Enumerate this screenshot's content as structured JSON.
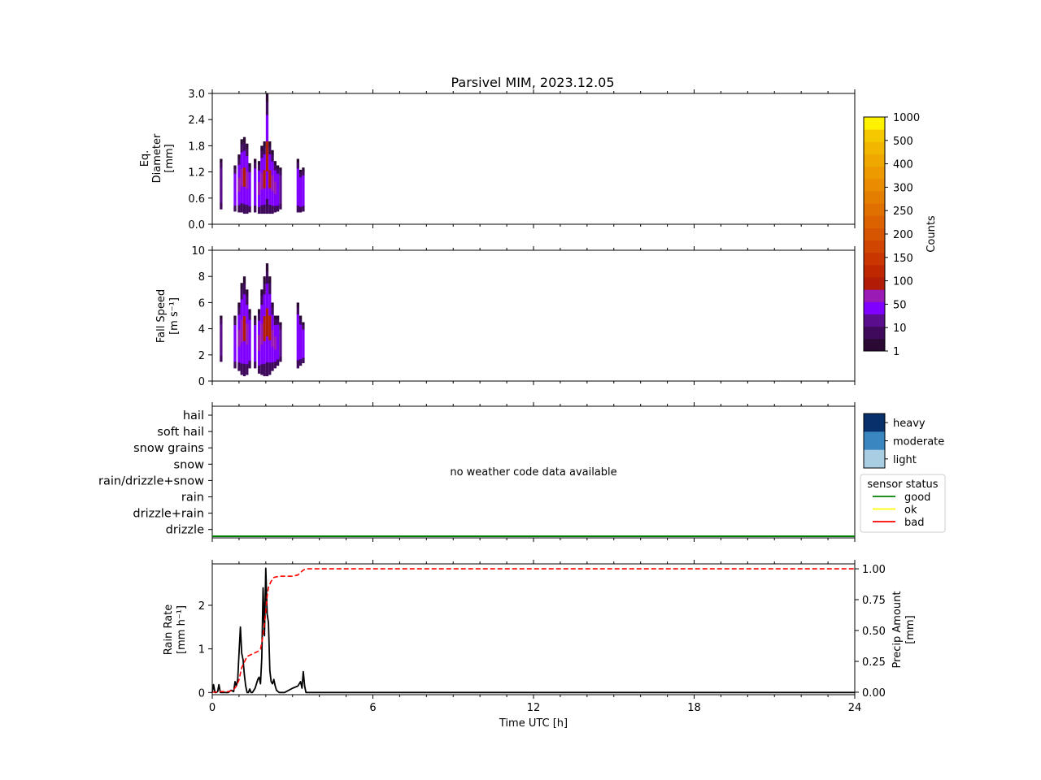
{
  "figure_title": "Parsivel MIM, 2023.12.05",
  "time_axis": {
    "label": "Time UTC [h]",
    "range": [
      0,
      24
    ],
    "major_ticks": [
      0,
      6,
      12,
      18,
      24
    ],
    "major_tick_labels": [
      "0",
      "6",
      "12",
      "18",
      "24"
    ],
    "minor_tick_step": 1
  },
  "colorbar_counts": {
    "label": "Counts",
    "levels": [
      "1",
      "10",
      "50",
      "100",
      "150",
      "200",
      "250",
      "300",
      "400",
      "500",
      "1000"
    ],
    "colors": [
      "#2a0a33",
      "#3f0a5c",
      "#5a0d8c",
      "#8000ff",
      "#9a1ab5",
      "#b01c05",
      "#bf2700",
      "#c93600",
      "#d04500",
      "#d65500",
      "#dc6200",
      "#e07000",
      "#e47e00",
      "#e98c00",
      "#ec9a00",
      "#efa800",
      "#f2b600",
      "#f6c800",
      "#fff200"
    ]
  },
  "weather_code_panel": {
    "categories": [
      "hail",
      "soft hail",
      "snow grains",
      "snow",
      "rain/drizzle+snow",
      "rain",
      "drizzle+rain",
      "drizzle"
    ],
    "message": "no weather code data available",
    "intensity_legend": [
      {
        "label": "heavy",
        "color": "#08306b"
      },
      {
        "label": "moderate",
        "color": "#3a86c0"
      },
      {
        "label": "light",
        "color": "#a9cde3"
      }
    ],
    "sensor_status_legend": {
      "title": "sensor status",
      "items": [
        {
          "label": "good",
          "color": "#008000"
        },
        {
          "label": "ok",
          "color": "#ffff00"
        },
        {
          "label": "bad",
          "color": "#ff0000"
        }
      ]
    },
    "status_line_color": "#008000"
  },
  "chart_data": [
    {
      "type": "heatmap",
      "title": "Parsivel MIM, 2023.12.05",
      "xlabel": "Time UTC [h]",
      "ylabel": "Eq. Diameter [mm]",
      "xlim": [
        0,
        24
      ],
      "ylim": [
        0,
        3.0
      ],
      "yticks": [
        "0.0",
        "0.6",
        "1.2",
        "1.8",
        "2.4",
        "3.0"
      ],
      "columns": [
        {
          "t": 0.33,
          "ymin": 0.35,
          "ymax": 1.5,
          "level": 2
        },
        {
          "t": 0.85,
          "ymin": 0.3,
          "ymax": 1.35,
          "level": 3
        },
        {
          "t": 1.0,
          "ymin": 0.28,
          "ymax": 1.6,
          "level": 4
        },
        {
          "t": 1.1,
          "ymin": 0.28,
          "ymax": 1.95,
          "level": 4
        },
        {
          "t": 1.2,
          "ymin": 0.25,
          "ymax": 2.0,
          "level": 5
        },
        {
          "t": 1.3,
          "ymin": 0.25,
          "ymax": 1.85,
          "level": 4
        },
        {
          "t": 1.4,
          "ymin": 0.28,
          "ymax": 1.4,
          "level": 3
        },
        {
          "t": 1.6,
          "ymin": 0.28,
          "ymax": 1.5,
          "level": 3
        },
        {
          "t": 1.75,
          "ymin": 0.25,
          "ymax": 1.45,
          "level": 4
        },
        {
          "t": 1.85,
          "ymin": 0.25,
          "ymax": 1.8,
          "level": 4
        },
        {
          "t": 1.95,
          "ymin": 0.25,
          "ymax": 1.9,
          "level": 5
        },
        {
          "t": 2.05,
          "ymin": 0.25,
          "ymax": 3.0,
          "level": 5
        },
        {
          "t": 2.15,
          "ymin": 0.25,
          "ymax": 1.9,
          "level": 5
        },
        {
          "t": 2.25,
          "ymin": 0.25,
          "ymax": 1.7,
          "level": 4
        },
        {
          "t": 2.35,
          "ymin": 0.28,
          "ymax": 1.45,
          "level": 4
        },
        {
          "t": 2.45,
          "ymin": 0.3,
          "ymax": 1.35,
          "level": 3
        },
        {
          "t": 2.55,
          "ymin": 0.35,
          "ymax": 1.3,
          "level": 2
        },
        {
          "t": 3.2,
          "ymin": 0.28,
          "ymax": 1.5,
          "level": 3
        },
        {
          "t": 3.3,
          "ymin": 0.28,
          "ymax": 1.25,
          "level": 3
        },
        {
          "t": 3.4,
          "ymin": 0.3,
          "ymax": 1.3,
          "level": 3
        }
      ]
    },
    {
      "type": "heatmap",
      "xlabel": "Time UTC [h]",
      "ylabel": "Fall Speed [m s⁻¹]",
      "xlim": [
        0,
        24
      ],
      "ylim": [
        0,
        10
      ],
      "yticks": [
        "0",
        "2",
        "4",
        "6",
        "8",
        "10"
      ],
      "columns": [
        {
          "t": 0.33,
          "ymin": 1.5,
          "ymax": 5.0,
          "level": 2
        },
        {
          "t": 0.85,
          "ymin": 1.0,
          "ymax": 5.0,
          "level": 3
        },
        {
          "t": 1.0,
          "ymin": 0.8,
          "ymax": 6.0,
          "level": 4
        },
        {
          "t": 1.1,
          "ymin": 0.5,
          "ymax": 7.5,
          "level": 4
        },
        {
          "t": 1.2,
          "ymin": 0.4,
          "ymax": 8.0,
          "level": 5
        },
        {
          "t": 1.3,
          "ymin": 0.5,
          "ymax": 7.0,
          "level": 4
        },
        {
          "t": 1.4,
          "ymin": 1.0,
          "ymax": 5.5,
          "level": 3
        },
        {
          "t": 1.6,
          "ymin": 1.0,
          "ymax": 5.0,
          "level": 3
        },
        {
          "t": 1.75,
          "ymin": 0.6,
          "ymax": 5.5,
          "level": 4
        },
        {
          "t": 1.85,
          "ymin": 0.5,
          "ymax": 7.0,
          "level": 4
        },
        {
          "t": 1.95,
          "ymin": 0.4,
          "ymax": 8.0,
          "level": 5
        },
        {
          "t": 2.05,
          "ymin": 0.4,
          "ymax": 9.0,
          "level": 5
        },
        {
          "t": 2.15,
          "ymin": 0.5,
          "ymax": 8.0,
          "level": 5
        },
        {
          "t": 2.25,
          "ymin": 0.8,
          "ymax": 6.0,
          "level": 4
        },
        {
          "t": 2.35,
          "ymin": 1.0,
          "ymax": 5.0,
          "level": 4
        },
        {
          "t": 2.45,
          "ymin": 1.2,
          "ymax": 5.0,
          "level": 3
        },
        {
          "t": 2.55,
          "ymin": 1.5,
          "ymax": 4.5,
          "level": 2
        },
        {
          "t": 3.2,
          "ymin": 1.0,
          "ymax": 6.0,
          "level": 3
        },
        {
          "t": 3.3,
          "ymin": 1.2,
          "ymax": 5.0,
          "level": 3
        },
        {
          "t": 3.4,
          "ymin": 1.4,
          "ymax": 4.5,
          "level": 3
        }
      ]
    },
    {
      "type": "line",
      "xlabel": "Time UTC [h]",
      "ylabel": "Rain Rate [mm h⁻¹]",
      "y2label": "Precip Amount [mm]",
      "xlim": [
        0,
        24
      ],
      "ylim": [
        -0.05,
        2.95
      ],
      "y2lim": [
        -0.02,
        1.04
      ],
      "yticks": [
        "0",
        "1",
        "2"
      ],
      "y2ticks": [
        "0.00",
        "0.25",
        "0.50",
        "0.75",
        "1.00"
      ],
      "series": [
        {
          "color": "#000000",
          "style": "solid",
          "axis": "left",
          "x": [
            0,
            0.05,
            0.1,
            0.15,
            0.2,
            0.25,
            0.3,
            0.35,
            0.4,
            0.5,
            0.6,
            0.7,
            0.8,
            0.85,
            0.9,
            0.95,
            1.0,
            1.05,
            1.1,
            1.15,
            1.2,
            1.25,
            1.3,
            1.35,
            1.4,
            1.45,
            1.5,
            1.6,
            1.7,
            1.75,
            1.8,
            1.85,
            1.9,
            1.95,
            2.0,
            2.05,
            2.1,
            2.15,
            2.2,
            2.25,
            2.3,
            2.35,
            2.4,
            2.5,
            2.6,
            2.7,
            3.0,
            3.2,
            3.3,
            3.35,
            3.4,
            3.45,
            3.5,
            3.6,
            4.0,
            24
          ],
          "y": [
            0,
            0.18,
            0,
            0,
            0.02,
            0.18,
            0,
            0,
            0,
            0,
            0,
            0.05,
            0.02,
            0.25,
            0.15,
            0.3,
            0.9,
            1.5,
            0.9,
            0.75,
            0.4,
            0.15,
            0,
            0,
            0.08,
            0,
            0,
            0.1,
            0.3,
            0.35,
            0.2,
            0.8,
            2.4,
            1.3,
            2.85,
            1.8,
            1.6,
            0.5,
            0.25,
            0.2,
            0.3,
            0.15,
            0.05,
            0,
            0,
            0,
            0.1,
            0.15,
            0.25,
            0.1,
            0.48,
            0.15,
            0,
            0,
            0,
            0
          ]
        },
        {
          "color": "#ff0000",
          "style": "dashed",
          "axis": "right",
          "x": [
            0,
            0.3,
            0.6,
            0.8,
            0.9,
            1.0,
            1.1,
            1.3,
            1.4,
            1.5,
            1.7,
            1.8,
            1.85,
            1.9,
            1.95,
            2.0,
            2.05,
            2.1,
            2.2,
            2.3,
            2.5,
            3.0,
            3.2,
            3.3,
            3.4,
            3.5,
            4.0,
            24
          ],
          "y": [
            0,
            0.005,
            0.005,
            0.02,
            0.05,
            0.1,
            0.2,
            0.29,
            0.3,
            0.31,
            0.33,
            0.35,
            0.4,
            0.47,
            0.55,
            0.65,
            0.78,
            0.85,
            0.9,
            0.93,
            0.94,
            0.94,
            0.95,
            0.97,
            0.99,
            1.0,
            1.0,
            1.0
          ]
        }
      ]
    }
  ]
}
